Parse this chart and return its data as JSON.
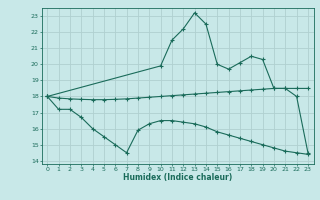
{
  "xlabel": "Humidex (Indice chaleur)",
  "bg_color": "#c8e8e8",
  "grid_color": "#b0d0d0",
  "line_color": "#1a6b5a",
  "xlim": [
    -0.5,
    23.5
  ],
  "ylim": [
    13.8,
    23.5
  ],
  "yticks": [
    14,
    15,
    16,
    17,
    18,
    19,
    20,
    21,
    22,
    23
  ],
  "xticks": [
    0,
    1,
    2,
    3,
    4,
    5,
    6,
    7,
    8,
    9,
    10,
    11,
    12,
    13,
    14,
    15,
    16,
    17,
    18,
    19,
    20,
    21,
    22,
    23
  ],
  "line1_x": [
    0,
    10,
    11,
    12,
    13,
    14,
    15,
    16,
    17,
    18,
    19,
    20,
    21,
    22,
    23
  ],
  "line1_y": [
    18.0,
    19.9,
    21.5,
    22.2,
    23.2,
    22.5,
    20.0,
    19.7,
    20.1,
    20.5,
    20.3,
    18.5,
    18.5,
    18.0,
    14.5
  ],
  "line2_x": [
    0,
    1,
    2,
    3,
    4,
    5,
    6,
    7,
    8,
    9,
    10,
    11,
    12,
    13,
    14,
    15,
    16,
    17,
    18,
    19,
    20,
    21,
    22,
    23
  ],
  "line2_y": [
    18.0,
    17.9,
    17.85,
    17.82,
    17.8,
    17.8,
    17.82,
    17.85,
    17.9,
    17.95,
    18.0,
    18.05,
    18.1,
    18.15,
    18.2,
    18.25,
    18.3,
    18.35,
    18.4,
    18.45,
    18.5,
    18.5,
    18.5,
    18.5
  ],
  "line3_x": [
    0,
    1,
    2,
    3,
    4,
    5,
    6,
    7,
    8,
    9,
    10,
    11,
    12,
    13,
    14,
    15,
    16,
    17,
    18,
    19,
    20,
    21,
    22,
    23
  ],
  "line3_y": [
    18.0,
    17.2,
    17.2,
    16.7,
    16.0,
    15.5,
    15.0,
    14.5,
    15.9,
    16.3,
    16.5,
    16.5,
    16.4,
    16.3,
    16.1,
    15.8,
    15.6,
    15.4,
    15.2,
    15.0,
    14.8,
    14.6,
    14.5,
    14.4
  ]
}
